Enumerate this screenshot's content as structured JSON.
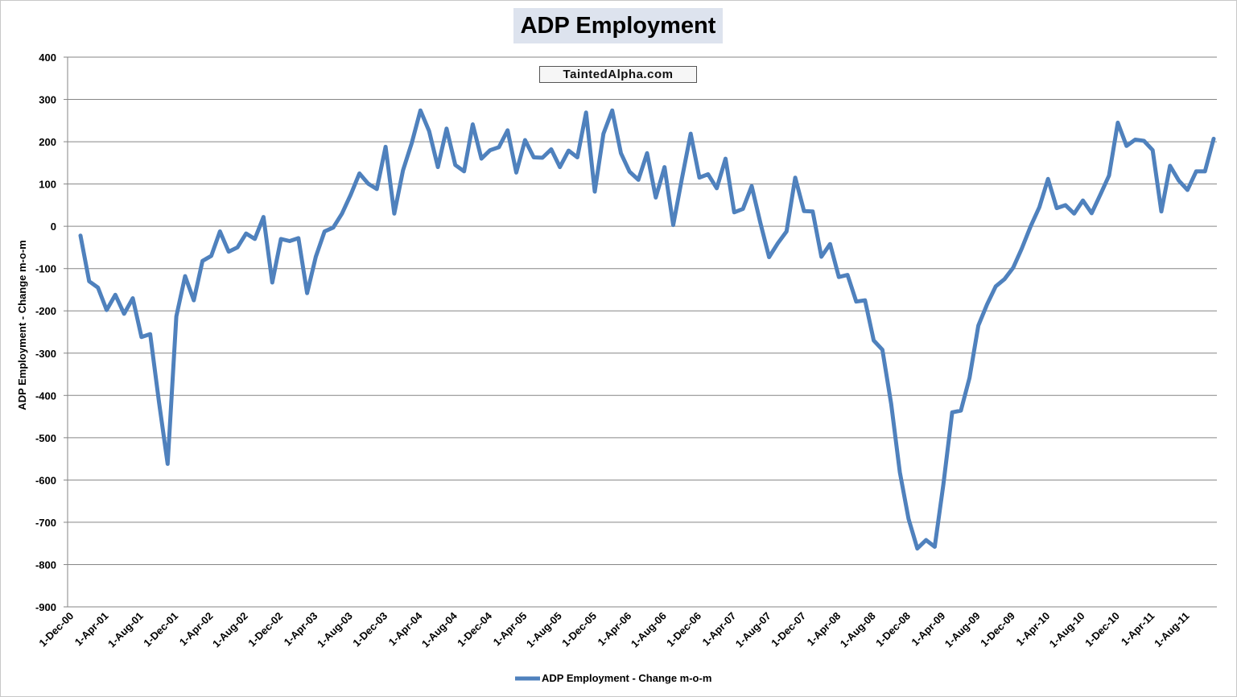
{
  "chart_data": {
    "type": "line",
    "title": "ADP Employment",
    "watermark": "TaintedAlpha.com",
    "xlabel": "",
    "ylabel": "ADP Employment - Change m-o-m",
    "ylim": [
      -900,
      400
    ],
    "yticks": [
      400,
      300,
      200,
      100,
      0,
      -100,
      -200,
      -300,
      -400,
      -500,
      -600,
      -700,
      -800,
      -900
    ],
    "xtick_labels": [
      "1-Dec-00",
      "1-Apr-01",
      "1-Aug-01",
      "1-Dec-01",
      "1-Apr-02",
      "1-Aug-02",
      "1-Dec-02",
      "1-Apr-03",
      "1-Aug-03",
      "1-Dec-03",
      "1-Apr-04",
      "1-Aug-04",
      "1-Dec-04",
      "1-Apr-05",
      "1-Aug-05",
      "1-Dec-05",
      "1-Apr-06",
      "1-Aug-06",
      "1-Dec-06",
      "1-Apr-07",
      "1-Aug-07",
      "1-Dec-07",
      "1-Apr-08",
      "1-Aug-08",
      "1-Dec-08",
      "1-Apr-09",
      "1-Aug-09",
      "1-Dec-09",
      "1-Apr-10",
      "1-Aug-10",
      "1-Dec-10",
      "1-Apr-11",
      "1-Aug-11"
    ],
    "grid": true,
    "legend_position": "bottom",
    "color": "#4f81bd",
    "series": [
      {
        "name": "ADP Employment - Change m-o-m",
        "start": "Jan-01",
        "values": [
          -22,
          -130,
          -145,
          -198,
          -162,
          -207,
          -170,
          -262,
          -255,
          -415,
          -562,
          -213,
          -118,
          -175,
          -82,
          -70,
          -12,
          -60,
          -50,
          -17,
          -30,
          22,
          -133,
          -30,
          -35,
          -28,
          -158,
          -72,
          -12,
          -3,
          30,
          75,
          125,
          101,
          88,
          188,
          30,
          132,
          197,
          274,
          225,
          140,
          231,
          145,
          130,
          241,
          160,
          180,
          187,
          227,
          127,
          204,
          163,
          162,
          182,
          140,
          179,
          163,
          269,
          82,
          219,
          274,
          173,
          129,
          110,
          173,
          68,
          140,
          3,
          113,
          219,
          115,
          123,
          90,
          160,
          33,
          41,
          95,
          8,
          -73,
          -40,
          -12,
          115,
          36,
          35,
          -72,
          -42,
          -120,
          -115,
          -178,
          -175,
          -270,
          -292,
          -420,
          -582,
          -692,
          -762,
          -742,
          -758,
          -610,
          -440,
          -436,
          -358,
          -235,
          -185,
          -142,
          -125,
          -98,
          -52,
          0,
          45,
          112,
          43,
          50,
          30,
          61,
          31,
          75,
          120,
          245,
          190,
          205,
          202,
          180,
          35,
          143,
          108,
          86,
          130,
          130,
          207
        ]
      }
    ]
  }
}
